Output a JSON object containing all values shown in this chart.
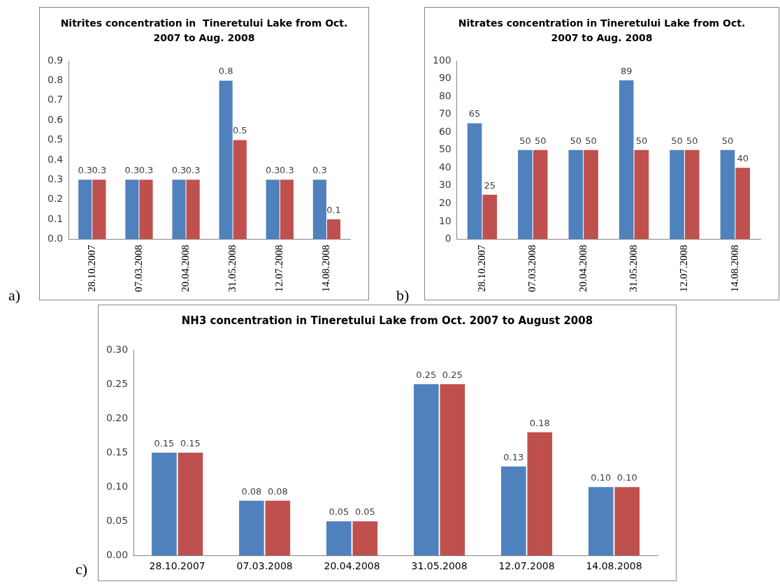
{
  "chart_data": [
    {
      "type": "bar",
      "title": "Nitrites concentration in  Tineretului Lake from Oct. 2007 to Aug. 2008",
      "categories": [
        "28.10.2007",
        "07.03.2008",
        "20.04.2008",
        "31.05.2008",
        "12.07.2008",
        "14.08.2008"
      ],
      "series": [
        {
          "color": "#4f81bd",
          "values": [
            0.3,
            0.3,
            0.3,
            0.8,
            0.3,
            0.3
          ]
        },
        {
          "color": "#c0504d",
          "values": [
            0.3,
            0.3,
            0.3,
            0.5,
            0.3,
            0.1
          ]
        }
      ],
      "ylim": [
        0,
        0.9
      ],
      "yticks": [
        {
          "value": 0,
          "label": "0.0"
        },
        {
          "value": 0.1,
          "label": "0.1"
        },
        {
          "value": 0.2,
          "label": "0.2"
        },
        {
          "value": 0.3,
          "label": "0.3"
        },
        {
          "value": 0.4,
          "label": "0.4"
        },
        {
          "value": 0.5,
          "label": "0.5"
        },
        {
          "value": 0.6,
          "label": "0.6"
        },
        {
          "value": 0.7,
          "label": "0.7"
        },
        {
          "value": 0.8,
          "label": "0.8"
        },
        {
          "value": 0.9,
          "label": "0.9"
        }
      ],
      "data_labels": true,
      "grid": false,
      "legend": false,
      "annotations": [
        "a)"
      ]
    },
    {
      "type": "bar",
      "title": "Nitrates concentration in Tineretului Lake from Oct. 2007 to Aug. 2008",
      "categories": [
        "28.10.2007",
        "07.03.2008",
        "20.04.2008",
        "31.05.2008",
        "12.07.2008",
        "14.08.2008"
      ],
      "series": [
        {
          "color": "#4f81bd",
          "values": [
            65,
            50,
            50,
            89,
            50,
            50
          ]
        },
        {
          "color": "#c0504d",
          "values": [
            25,
            50,
            50,
            50,
            50,
            40
          ]
        }
      ],
      "ylim": [
        0,
        100
      ],
      "yticks": [
        0,
        10,
        20,
        30,
        40,
        50,
        60,
        70,
        80,
        90,
        100
      ],
      "data_labels": true,
      "grid": false,
      "legend": false,
      "annotations": [
        "b)"
      ]
    },
    {
      "type": "bar",
      "title": "NH3 concentration in Tineretului Lake from Oct. 2007 to August 2008",
      "categories": [
        "28.10.2007",
        "07.03.2008",
        "20.04.2008",
        "31.05.2008",
        "12.07.2008",
        "14.08.2008"
      ],
      "series": [
        {
          "color": "#4f81bd",
          "values": [
            0.15,
            0.08,
            0.05,
            0.25,
            0.13,
            0.1
          ],
          "value_labels": [
            "0.15",
            "0.08",
            "0.05",
            "0.25",
            "0.13",
            "0.10"
          ]
        },
        {
          "color": "#c0504d",
          "values": [
            0.15,
            0.08,
            0.05,
            0.25,
            0.18,
            0.1
          ],
          "value_labels": [
            "0.15",
            "0.08",
            "0.05",
            "0.25",
            "0.18",
            "0.10"
          ]
        }
      ],
      "ylim": [
        0,
        0.3
      ],
      "yticks": [
        {
          "value": 0,
          "label": "0.00"
        },
        {
          "value": 0.05,
          "label": "0.05"
        },
        {
          "value": 0.1,
          "label": "0.10"
        },
        {
          "value": 0.15,
          "label": "0.15"
        },
        {
          "value": 0.2,
          "label": "0.20"
        },
        {
          "value": 0.25,
          "label": "0.25"
        },
        {
          "value": 0.3,
          "label": "0.30"
        }
      ],
      "grid": false,
      "legend": false,
      "annotations": [
        "c)"
      ]
    }
  ]
}
